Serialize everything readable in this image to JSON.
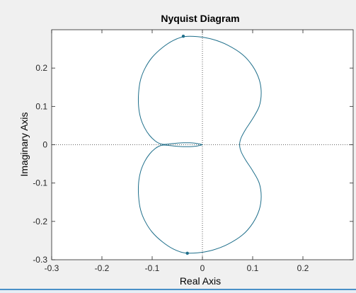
{
  "chart_data": {
    "type": "line",
    "title": "Nyquist Diagram",
    "xlabel": "Real Axis",
    "ylabel": "Imaginary Axis",
    "xlim": [
      -0.3,
      0.3
    ],
    "ylim": [
      -0.3,
      0.3
    ],
    "xticks": [
      -0.3,
      -0.2,
      -0.1,
      0,
      0.1,
      0.2
    ],
    "yticks": [
      -0.3,
      -0.2,
      -0.1,
      0,
      0.1,
      0.2
    ],
    "xtick_labels": [
      "-0.3",
      "-0.2",
      "-0.1",
      "0",
      "0.1",
      "0.2"
    ],
    "ytick_labels": [
      "-0.3",
      "-0.2",
      "-0.1",
      "0",
      "0.1",
      "0.2"
    ],
    "grid": false,
    "reference_lines": {
      "x": 0,
      "y": 0,
      "style": "dotted"
    },
    "line_color": "#1f6f8b",
    "series": [
      {
        "values": [
          [
            0.0,
            0.0
          ],
          [
            -0.006,
            0.002
          ],
          [
            -0.014,
            0.004
          ],
          [
            -0.025,
            0.005
          ],
          [
            -0.038,
            0.005
          ],
          [
            -0.052,
            0.004
          ],
          [
            -0.066,
            0.002
          ],
          [
            -0.077,
            0.001
          ],
          [
            -0.085,
            0.003
          ],
          [
            -0.094,
            0.01
          ],
          [
            -0.105,
            0.024
          ],
          [
            -0.115,
            0.044
          ],
          [
            -0.123,
            0.07
          ],
          [
            -0.127,
            0.1
          ],
          [
            -0.127,
            0.135
          ],
          [
            -0.123,
            0.17
          ],
          [
            -0.114,
            0.2
          ],
          [
            -0.1,
            0.228
          ],
          [
            -0.08,
            0.253
          ],
          [
            -0.058,
            0.272
          ],
          [
            -0.036,
            0.282
          ],
          [
            -0.01,
            0.282
          ],
          [
            0.02,
            0.275
          ],
          [
            0.05,
            0.26
          ],
          [
            0.08,
            0.235
          ],
          [
            0.1,
            0.205
          ],
          [
            0.113,
            0.17
          ],
          [
            0.117,
            0.135
          ],
          [
            0.113,
            0.1
          ],
          [
            0.1,
            0.068
          ],
          [
            0.086,
            0.04
          ],
          [
            0.077,
            0.018
          ],
          [
            0.074,
            0.0
          ],
          [
            0.077,
            -0.018
          ],
          [
            0.086,
            -0.04
          ],
          [
            0.1,
            -0.068
          ],
          [
            0.113,
            -0.1
          ],
          [
            0.117,
            -0.135
          ],
          [
            0.113,
            -0.17
          ],
          [
            0.1,
            -0.205
          ],
          [
            0.08,
            -0.235
          ],
          [
            0.05,
            -0.26
          ],
          [
            0.02,
            -0.275
          ],
          [
            -0.01,
            -0.282
          ],
          [
            -0.036,
            -0.282
          ],
          [
            -0.058,
            -0.272
          ],
          [
            -0.08,
            -0.253
          ],
          [
            -0.1,
            -0.228
          ],
          [
            -0.114,
            -0.2
          ],
          [
            -0.123,
            -0.17
          ],
          [
            -0.127,
            -0.135
          ],
          [
            -0.127,
            -0.1
          ],
          [
            -0.123,
            -0.07
          ],
          [
            -0.115,
            -0.044
          ],
          [
            -0.105,
            -0.024
          ],
          [
            -0.094,
            -0.01
          ],
          [
            -0.085,
            -0.003
          ],
          [
            -0.077,
            -0.001
          ],
          [
            -0.066,
            -0.002
          ],
          [
            -0.052,
            -0.004
          ],
          [
            -0.038,
            -0.005
          ],
          [
            -0.025,
            -0.005
          ],
          [
            -0.014,
            -0.004
          ],
          [
            -0.006,
            -0.002
          ],
          [
            0.0,
            0.0
          ]
        ]
      }
    ],
    "markers": [
      {
        "x": -0.038,
        "y": 0.283
      },
      {
        "x": -0.03,
        "y": -0.283
      }
    ]
  }
}
